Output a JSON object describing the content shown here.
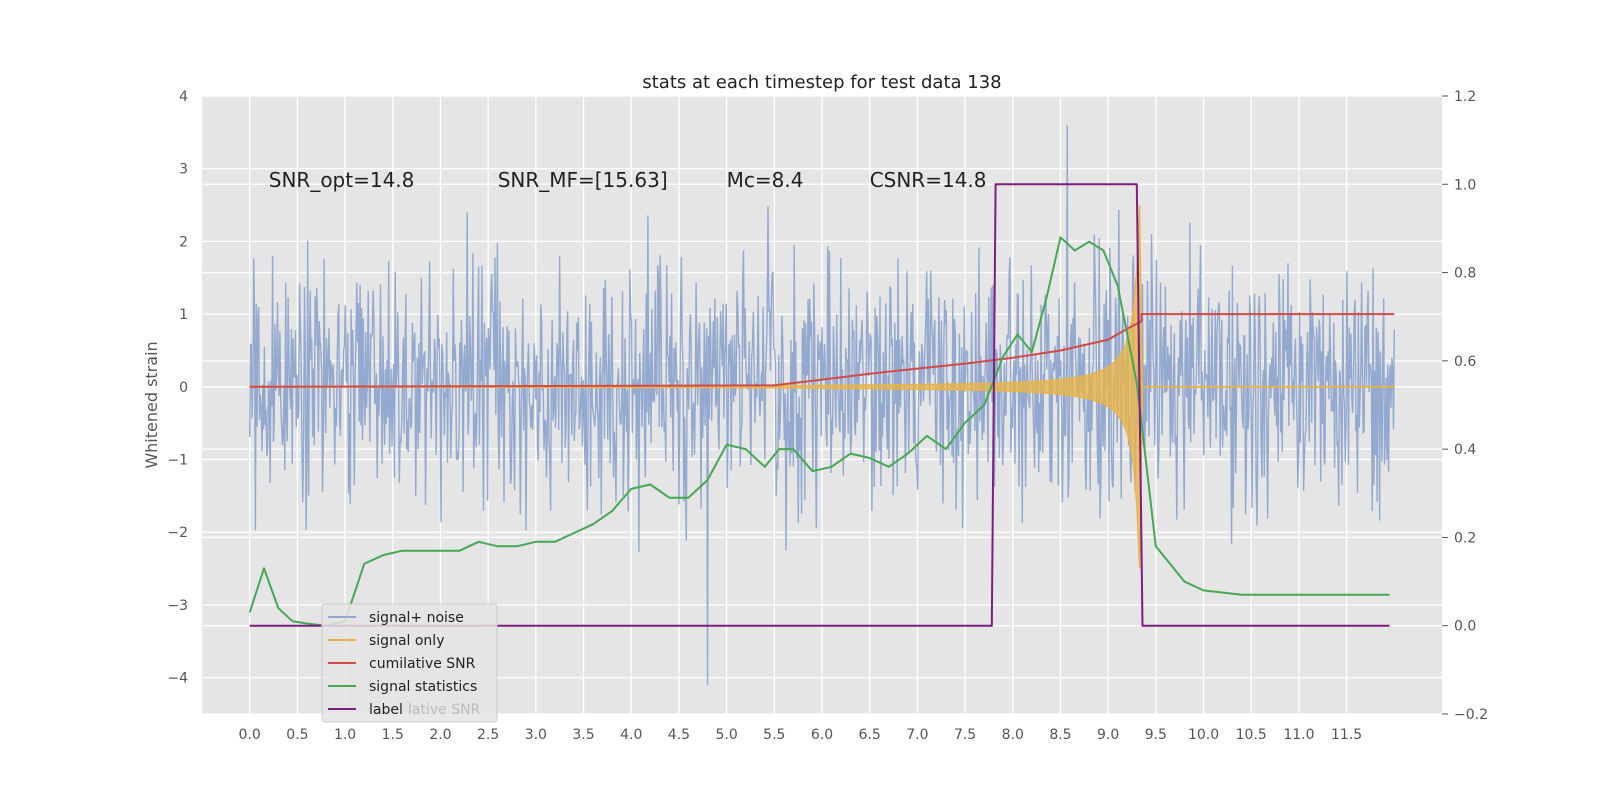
{
  "chart_data": {
    "type": "line",
    "title": "stats at each timestep for test data 138",
    "ylabel": "Whitened strain",
    "xlabel": "",
    "xlim": [
      -0.5,
      12.5
    ],
    "ylim": [
      -4.5,
      4.0
    ],
    "y2lim": [
      -0.2,
      1.2
    ],
    "grid": true,
    "legend_position": "lower-left",
    "xticks": [
      "0.0",
      "0.5",
      "1.0",
      "1.5",
      "2.0",
      "2.5",
      "3.0",
      "3.5",
      "4.0",
      "4.5",
      "5.0",
      "5.5",
      "6.0",
      "6.5",
      "7.0",
      "7.5",
      "8.0",
      "8.5",
      "9.0",
      "9.5",
      "10.0",
      "10.5",
      "11.0",
      "11.5"
    ],
    "yticks": [
      "4",
      "3",
      "2",
      "1",
      "0",
      "−1",
      "−2",
      "−3",
      "−4"
    ],
    "y2ticks": [
      "1.2",
      "1.0",
      "0.8",
      "0.6",
      "0.4",
      "0.2",
      "0.0",
      "−0.2"
    ],
    "annotations": [
      {
        "text": "SNR_opt=14.8",
        "x": 0.2,
        "y": 2.75
      },
      {
        "text": "SNR_MF=[15.63]",
        "x": 2.6,
        "y": 2.75
      },
      {
        "text": "Mc=8.4",
        "x": 5.0,
        "y": 2.75
      },
      {
        "text": "CSNR=14.8",
        "x": 6.5,
        "y": 2.75
      }
    ],
    "legend": [
      "signal+ noise",
      "signal only",
      "cumilative SNR",
      "signal statistics",
      "label"
    ],
    "legend_ghost": "lative SNR",
    "colors": {
      "noise": "#94a9cf",
      "signal": "#e8b449",
      "cumsnr": "#d24a4a",
      "stats": "#45a853",
      "label": "#7e1e80"
    },
    "series": [
      {
        "name": "signal+ noise",
        "axis": "left",
        "x_range": [
          0.0,
          12.0
        ],
        "typical_amplitude": 1.6,
        "max_peak": 3.6,
        "min_peak": -4.1
      },
      {
        "name": "signal only",
        "axis": "left",
        "x_range": [
          0.0,
          12.0
        ],
        "chirp_end": 9.35,
        "peak_amplitude": 2.0
      },
      {
        "name": "cumilative SNR",
        "axis": "left",
        "x": [
          0.0,
          5.5,
          6.0,
          6.5,
          7.0,
          7.5,
          8.0,
          8.5,
          9.0,
          9.2,
          9.35,
          9.35,
          12.0
        ],
        "values": [
          0.0,
          0.02,
          0.1,
          0.18,
          0.25,
          0.32,
          0.4,
          0.5,
          0.65,
          0.8,
          0.9,
          1.0,
          1.0
        ]
      },
      {
        "name": "signal statistics",
        "axis": "right",
        "x": [
          0.0,
          0.15,
          0.3,
          0.45,
          0.6,
          0.8,
          1.0,
          1.2,
          1.4,
          1.6,
          1.8,
          2.0,
          2.2,
          2.4,
          2.6,
          2.8,
          3.0,
          3.2,
          3.4,
          3.6,
          3.8,
          4.0,
          4.2,
          4.4,
          4.6,
          4.8,
          5.0,
          5.2,
          5.4,
          5.55,
          5.7,
          5.9,
          6.1,
          6.3,
          6.5,
          6.7,
          6.9,
          7.1,
          7.3,
          7.5,
          7.7,
          7.9,
          8.05,
          8.2,
          8.35,
          8.5,
          8.65,
          8.8,
          8.95,
          9.1,
          9.3,
          9.5,
          9.8,
          10.0,
          10.4,
          11.0,
          11.5,
          11.95
        ],
        "values": [
          0.03,
          0.13,
          0.04,
          0.01,
          0.005,
          0.0,
          0.01,
          0.14,
          0.16,
          0.17,
          0.17,
          0.17,
          0.17,
          0.19,
          0.18,
          0.18,
          0.19,
          0.19,
          0.21,
          0.23,
          0.26,
          0.31,
          0.32,
          0.29,
          0.29,
          0.33,
          0.41,
          0.4,
          0.36,
          0.4,
          0.4,
          0.35,
          0.36,
          0.39,
          0.38,
          0.36,
          0.39,
          0.43,
          0.4,
          0.46,
          0.5,
          0.61,
          0.66,
          0.62,
          0.74,
          0.88,
          0.85,
          0.87,
          0.85,
          0.77,
          0.55,
          0.18,
          0.1,
          0.08,
          0.07,
          0.07,
          0.07,
          0.07
        ]
      },
      {
        "name": "label",
        "axis": "right",
        "x": [
          0.0,
          7.78,
          7.82,
          9.3,
          9.36,
          11.95
        ],
        "values": [
          0.0,
          0.0,
          1.0,
          1.0,
          0.0,
          0.0
        ]
      }
    ]
  }
}
